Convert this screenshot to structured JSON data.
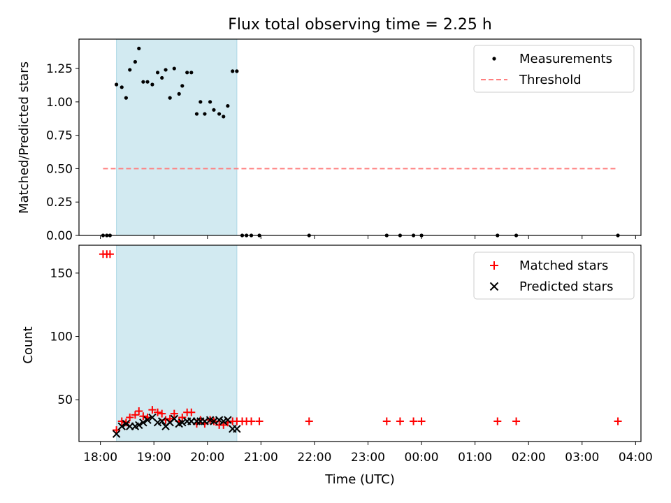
{
  "chart_data": [
    {
      "type": "scatter",
      "title": "Flux total observing time = 2.25 h",
      "ylabel": "Matched/Predicted stars",
      "xlabel": "",
      "x_unit": "hours since 18:00 UTC",
      "xlim": [
        -0.4,
        10.1
      ],
      "ylim": [
        0,
        1.47
      ],
      "yticks": [
        0.0,
        0.25,
        0.5,
        0.75,
        1.0,
        1.25
      ],
      "ytick_labels": [
        "0.00",
        "0.25",
        "0.50",
        "0.75",
        "1.00",
        "1.25"
      ],
      "shaded_span": [
        0.3,
        2.55
      ],
      "legend_position": "upper right",
      "series": [
        {
          "name": "Measurements",
          "marker": "dot",
          "color": "#000000",
          "points": [
            [
              0.05,
              0
            ],
            [
              0.12,
              0
            ],
            [
              0.18,
              0
            ],
            [
              0.3,
              1.13
            ],
            [
              0.4,
              1.11
            ],
            [
              0.48,
              1.03
            ],
            [
              0.55,
              1.24
            ],
            [
              0.65,
              1.3
            ],
            [
              0.72,
              1.4
            ],
            [
              0.8,
              1.15
            ],
            [
              0.88,
              1.15
            ],
            [
              0.97,
              1.13
            ],
            [
              1.07,
              1.22
            ],
            [
              1.15,
              1.18
            ],
            [
              1.22,
              1.24
            ],
            [
              1.3,
              1.03
            ],
            [
              1.38,
              1.25
            ],
            [
              1.47,
              1.06
            ],
            [
              1.53,
              1.12
            ],
            [
              1.62,
              1.22
            ],
            [
              1.7,
              1.22
            ],
            [
              1.8,
              0.91
            ],
            [
              1.87,
              1.0
            ],
            [
              1.95,
              0.91
            ],
            [
              2.05,
              1.0
            ],
            [
              2.12,
              0.94
            ],
            [
              2.22,
              0.91
            ],
            [
              2.3,
              0.89
            ],
            [
              2.38,
              0.97
            ],
            [
              2.47,
              1.23
            ],
            [
              2.55,
              1.23
            ],
            [
              2.65,
              0
            ],
            [
              2.73,
              0
            ],
            [
              2.82,
              0
            ],
            [
              2.97,
              0
            ],
            [
              3.9,
              0
            ],
            [
              5.35,
              0
            ],
            [
              5.6,
              0
            ],
            [
              5.85,
              0
            ],
            [
              6.0,
              0
            ],
            [
              7.42,
              0
            ],
            [
              7.77,
              0
            ],
            [
              9.67,
              0
            ]
          ]
        },
        {
          "name": "Threshold",
          "marker": "dashed-line",
          "color": "#ff7f7f",
          "points": [
            [
              0.05,
              0.5
            ],
            [
              9.67,
              0.5
            ]
          ]
        }
      ]
    },
    {
      "type": "scatter",
      "title": "",
      "ylabel": "Count",
      "xlabel": "Time (UTC)",
      "x_unit": "hours since 18:00 UTC",
      "xlim": [
        -0.4,
        10.1
      ],
      "ylim": [
        17,
        172
      ],
      "yticks": [
        50,
        100,
        150
      ],
      "ytick_labels": [
        "50",
        "100",
        "150"
      ],
      "xticks": [
        0,
        1,
        2,
        3,
        4,
        5,
        6,
        7,
        8,
        9,
        10
      ],
      "xtick_labels": [
        "18:00",
        "19:00",
        "20:00",
        "21:00",
        "22:00",
        "23:00",
        "00:00",
        "01:00",
        "02:00",
        "03:00",
        "04:00"
      ],
      "shaded_span": [
        0.3,
        2.55
      ],
      "legend_position": "upper right",
      "series": [
        {
          "name": "Matched stars",
          "marker": "plus",
          "color": "#ff0000",
          "points": [
            [
              0.05,
              165
            ],
            [
              0.12,
              165
            ],
            [
              0.18,
              165
            ],
            [
              0.3,
              26
            ],
            [
              0.4,
              33
            ],
            [
              0.48,
              32
            ],
            [
              0.55,
              36
            ],
            [
              0.65,
              38
            ],
            [
              0.72,
              41
            ],
            [
              0.8,
              37
            ],
            [
              0.88,
              36
            ],
            [
              0.97,
              42
            ],
            [
              1.07,
              40
            ],
            [
              1.15,
              39
            ],
            [
              1.22,
              34
            ],
            [
              1.3,
              35
            ],
            [
              1.38,
              39
            ],
            [
              1.47,
              33
            ],
            [
              1.53,
              36
            ],
            [
              1.62,
              40
            ],
            [
              1.7,
              40
            ],
            [
              1.8,
              31
            ],
            [
              1.87,
              34
            ],
            [
              1.95,
              31
            ],
            [
              2.05,
              34
            ],
            [
              2.12,
              33
            ],
            [
              2.22,
              30
            ],
            [
              2.3,
              30
            ],
            [
              2.38,
              32
            ],
            [
              2.47,
              33
            ],
            [
              2.55,
              33
            ],
            [
              2.65,
              33
            ],
            [
              2.73,
              33
            ],
            [
              2.82,
              33
            ],
            [
              2.97,
              33
            ],
            [
              3.9,
              33
            ],
            [
              5.35,
              33
            ],
            [
              5.6,
              33
            ],
            [
              5.85,
              33
            ],
            [
              6.0,
              33
            ],
            [
              7.42,
              33
            ],
            [
              7.77,
              33
            ],
            [
              9.67,
              33
            ]
          ]
        },
        {
          "name": "Predicted stars",
          "marker": "x",
          "color": "#000000",
          "points": [
            [
              0.3,
              23
            ],
            [
              0.4,
              29
            ],
            [
              0.48,
              31
            ],
            [
              0.55,
              29
            ],
            [
              0.65,
              29
            ],
            [
              0.72,
              30
            ],
            [
              0.8,
              32
            ],
            [
              0.88,
              34
            ],
            [
              0.97,
              36
            ],
            [
              1.07,
              32
            ],
            [
              1.15,
              33
            ],
            [
              1.22,
              29
            ],
            [
              1.3,
              32
            ],
            [
              1.38,
              35
            ],
            [
              1.47,
              31
            ],
            [
              1.53,
              32
            ],
            [
              1.62,
              33
            ],
            [
              1.7,
              33
            ],
            [
              1.8,
              33
            ],
            [
              1.87,
              33
            ],
            [
              1.95,
              33
            ],
            [
              2.05,
              34
            ],
            [
              2.12,
              33
            ],
            [
              2.22,
              34
            ],
            [
              2.3,
              33
            ],
            [
              2.38,
              34
            ],
            [
              2.47,
              27
            ],
            [
              2.55,
              27
            ]
          ]
        }
      ]
    }
  ]
}
